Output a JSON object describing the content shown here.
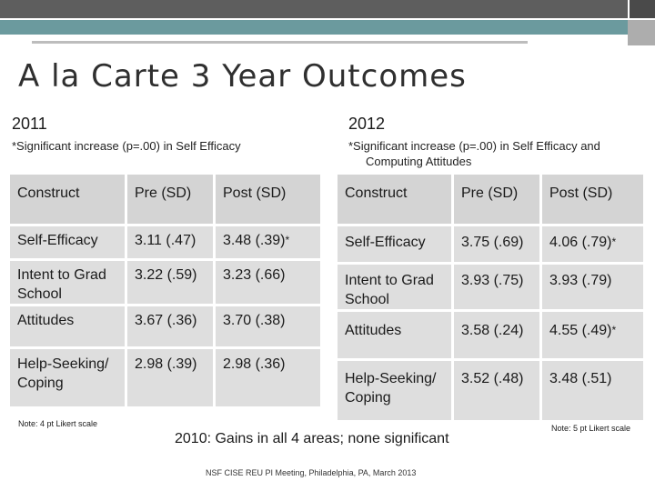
{
  "title": "A la Carte 3 Year Outcomes",
  "left": {
    "year": "2011",
    "significance_note": "*Significant increase (p=.00) in Self Efficacy",
    "headers": [
      "Construct",
      "Pre (SD)",
      "Post (SD)"
    ],
    "rows": [
      {
        "construct": "Self-Efficacy",
        "pre": "3.11 (.47)",
        "post": "3.48 (.39)",
        "star": "*"
      },
      {
        "construct": "Intent to Grad School",
        "pre": "3.22 (.59)",
        "post": "3.23 (.66)",
        "star": ""
      },
      {
        "construct": "Attitudes",
        "pre": "3.67 (.36)",
        "post": "3.70 (.38)",
        "star": ""
      },
      {
        "construct": "Help-Seeking/ Coping",
        "pre": "2.98 (.39)",
        "post": "2.98 (.36)",
        "star": ""
      }
    ],
    "scale_note": "Note: 4 pt Likert scale"
  },
  "right": {
    "year": "2012",
    "significance_note_line1": "*Significant increase (p=.00) in Self Efficacy and",
    "significance_note_line2": "Computing Attitudes",
    "headers": [
      "Construct",
      "Pre (SD)",
      "Post (SD)"
    ],
    "rows": [
      {
        "construct": "Self-Efficacy",
        "pre": "3.75 (.69)",
        "post": "4.06 (.79)",
        "star": "*"
      },
      {
        "construct": "Intent to Grad School",
        "pre": "3.93 (.75)",
        "post": "3.93 (.79)",
        "star": ""
      },
      {
        "construct": "Attitudes",
        "pre": "3.58 (.24)",
        "post": "4.55 (.49)",
        "star": "*"
      },
      {
        "construct": "Help-Seeking/ Coping",
        "pre": "3.52 (.48)",
        "post": "3.48 (.51)",
        "star": ""
      }
    ],
    "scale_note": "Note: 5 pt Likert scale"
  },
  "summary": "2010: Gains in all 4 areas; none significant",
  "footer": "NSF CISE REU PI Meeting, Philadelphia, PA, March 2013"
}
